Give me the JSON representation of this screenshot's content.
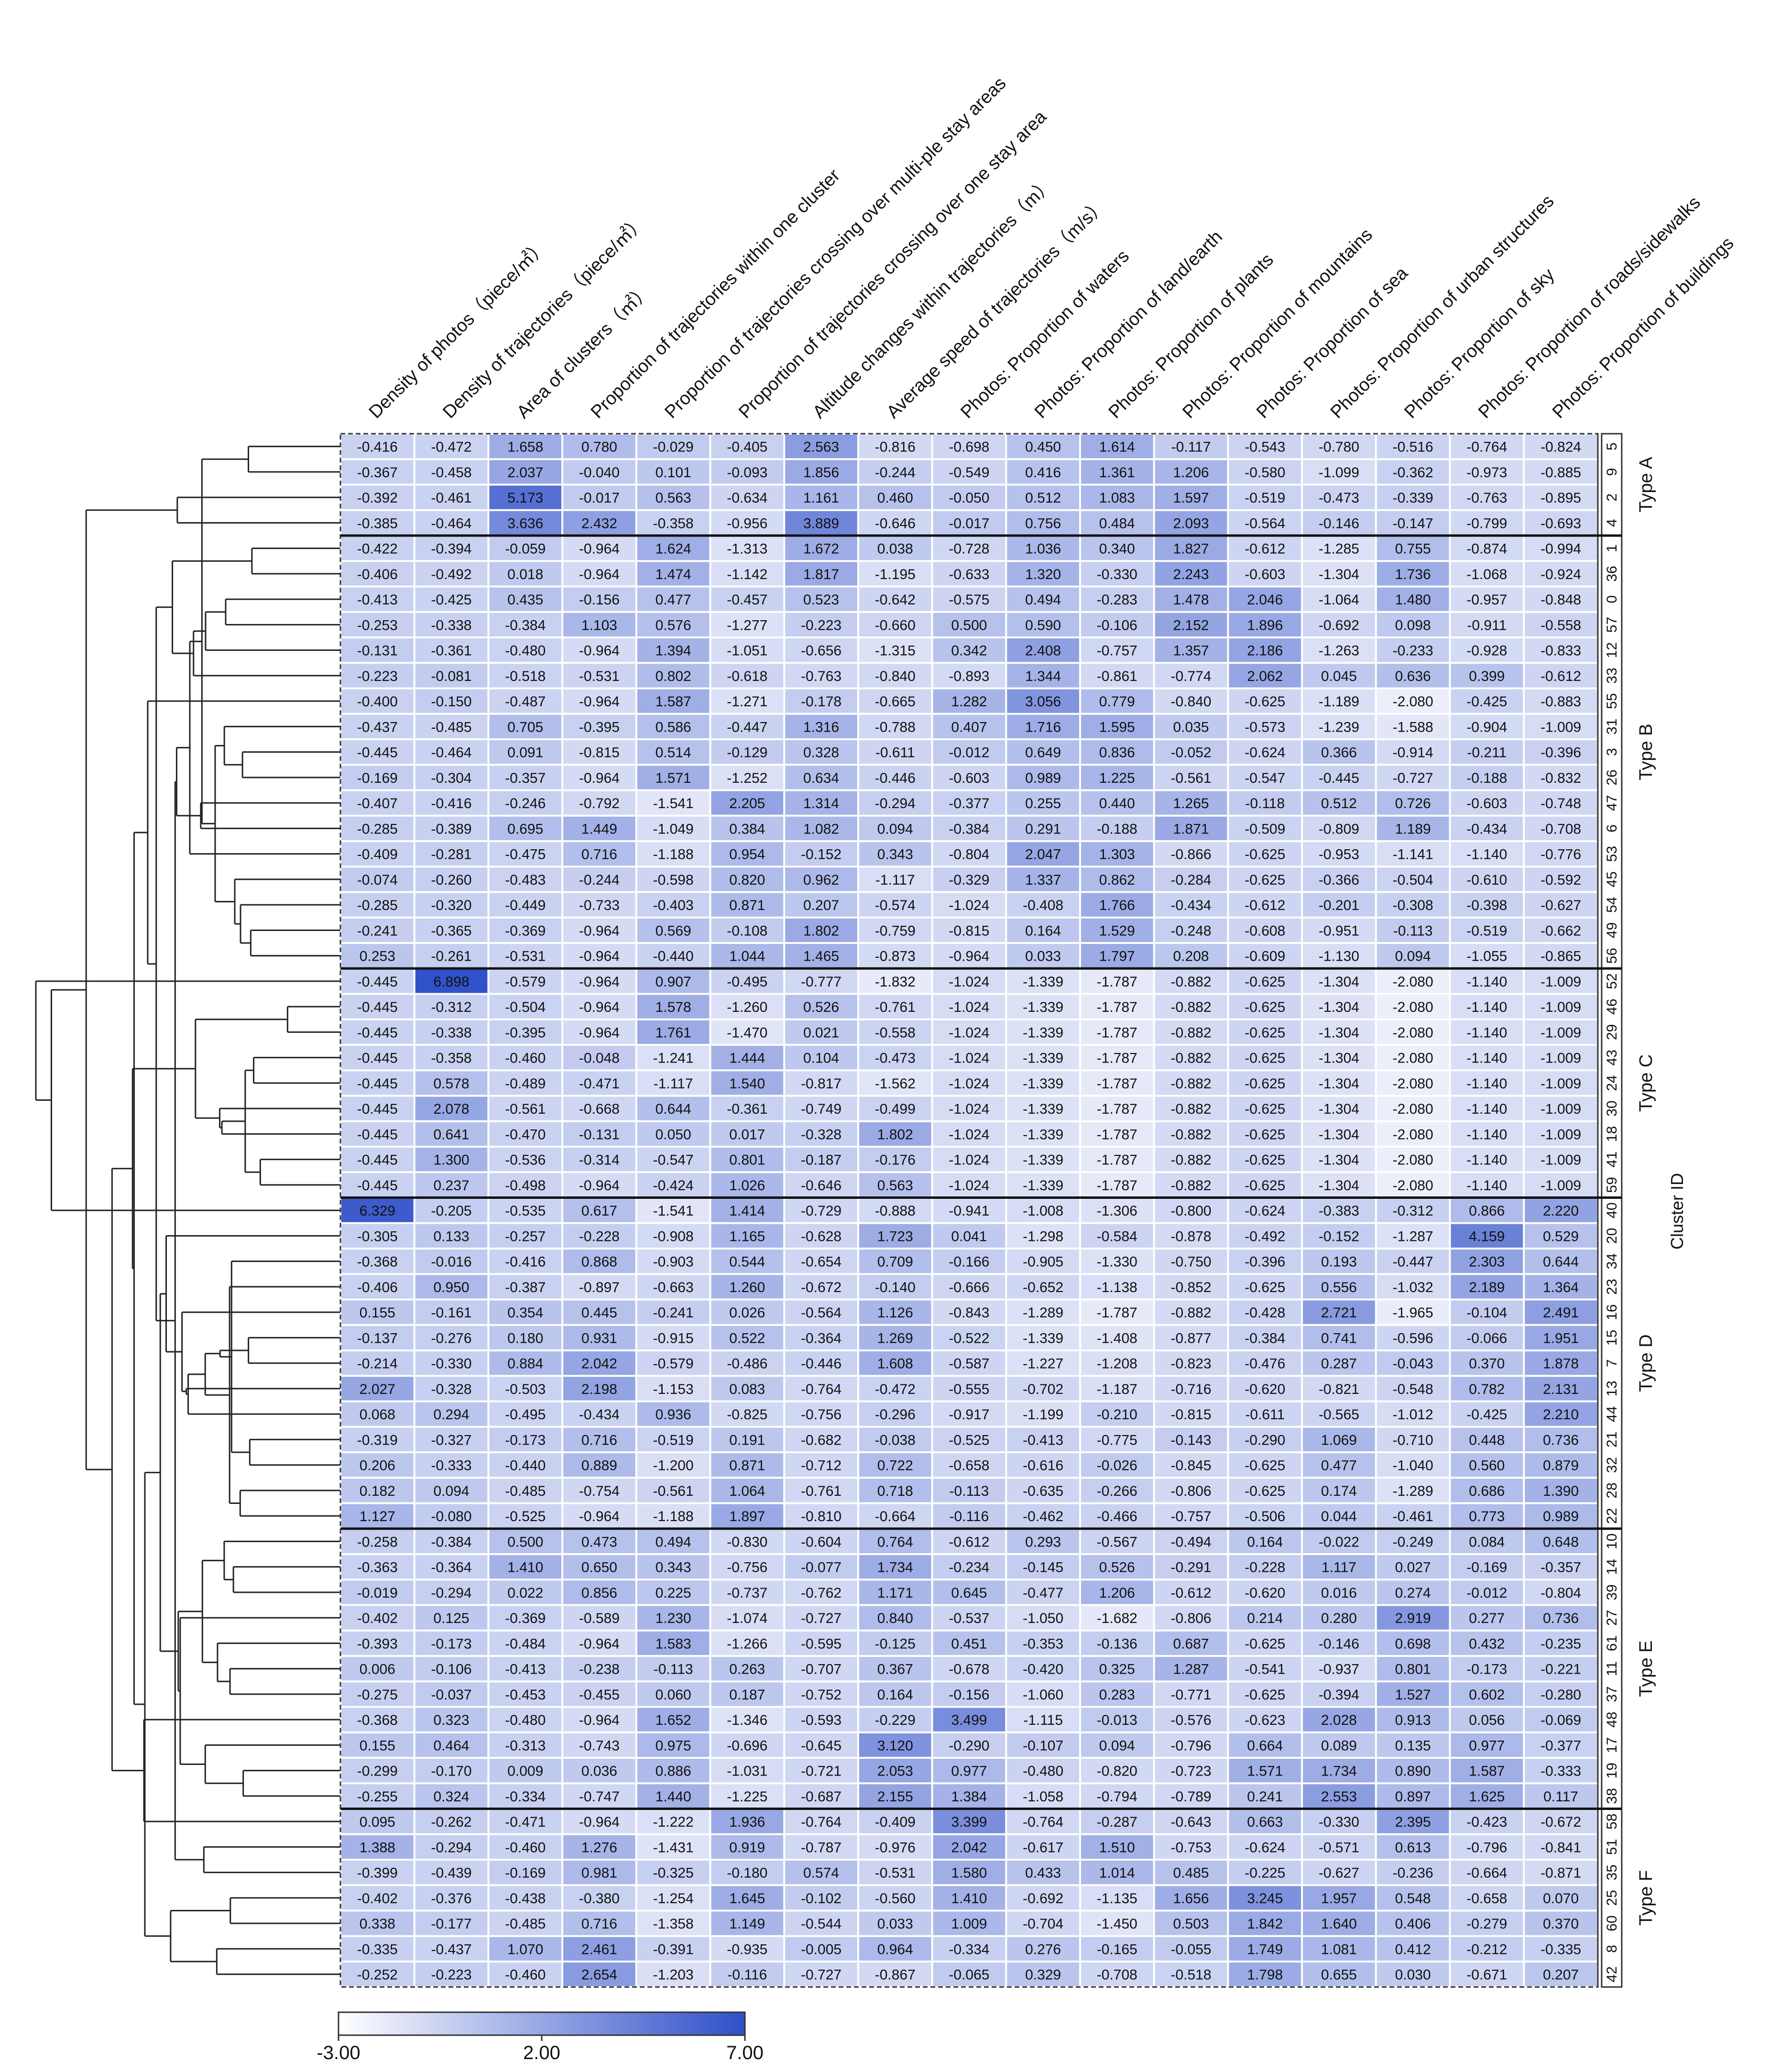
{
  "chart_data": {
    "type": "heatmap",
    "xlabel": "",
    "ylabel": "Cluster ID",
    "columns": [
      "Density of photos（piece/㎡）",
      "Density of trajectories（piece/㎡）",
      "Area of clusters（㎡）",
      "Proportion of trajectories within one cluster",
      "Proportion of trajectories crossing over multi-ple stay areas",
      "Proportion of trajectories crossing over one stay area",
      "Altitude changes within trajectories（m）",
      "Average speed of trajectories（m/s）",
      "Photos: Proportion of waters",
      "Photos: Proportion of land/earth",
      "Photos: Proportion of plants",
      "Photos: Proportion of mountains",
      "Photos: Proportion of sea",
      "Photos: Proportion of urban structures",
      "Photos: Proportion of sky",
      "Photos: Proportion of roads/sidewalks",
      "Photos: Proportion of buildings"
    ],
    "cluster_ids": [
      "5",
      "9",
      "2",
      "4",
      "1",
      "36",
      "0",
      "57",
      "12",
      "33",
      "55",
      "31",
      "3",
      "26",
      "47",
      "6",
      "53",
      "45",
      "54",
      "49",
      "56",
      "52",
      "46",
      "29",
      "43",
      "24",
      "30",
      "18",
      "41",
      "59",
      "40",
      "20",
      "34",
      "23",
      "16",
      "15",
      "7",
      "13",
      "44",
      "21",
      "32",
      "28",
      "22",
      "10",
      "14",
      "39",
      "27",
      "61",
      "11",
      "37",
      "48",
      "17",
      "19",
      "38",
      "58",
      "51",
      "35",
      "25",
      "60",
      "8",
      "42"
    ],
    "values": [
      [
        -0.416,
        -0.472,
        1.658,
        0.78,
        -0.029,
        -0.405,
        2.563,
        -0.816,
        -0.698,
        0.45,
        1.614,
        -0.117,
        -0.543,
        -0.78,
        -0.516,
        -0.764,
        -0.824
      ],
      [
        -0.367,
        -0.458,
        2.037,
        -0.04,
        0.101,
        -0.093,
        1.856,
        -0.244,
        -0.549,
        0.416,
        1.361,
        1.206,
        -0.58,
        -1.099,
        -0.362,
        -0.973,
        -0.885
      ],
      [
        -0.392,
        -0.461,
        5.173,
        -0.017,
        0.563,
        -0.634,
        1.161,
        0.46,
        -0.05,
        0.512,
        1.083,
        1.597,
        -0.519,
        -0.473,
        -0.339,
        -0.763,
        -0.895
      ],
      [
        -0.385,
        -0.464,
        3.636,
        2.432,
        -0.358,
        -0.956,
        3.889,
        -0.646,
        -0.017,
        0.756,
        0.484,
        2.093,
        -0.564,
        -0.146,
        -0.147,
        -0.799,
        -0.693
      ],
      [
        -0.422,
        -0.394,
        -0.059,
        -0.964,
        1.624,
        -1.313,
        1.672,
        0.038,
        -0.728,
        1.036,
        0.34,
        1.827,
        -0.612,
        -1.285,
        0.755,
        -0.874,
        -0.994
      ],
      [
        -0.406,
        -0.492,
        0.018,
        -0.964,
        1.474,
        -1.142,
        1.817,
        -1.195,
        -0.633,
        1.32,
        -0.33,
        2.243,
        -0.603,
        -1.304,
        1.736,
        -1.068,
        -0.924
      ],
      [
        -0.413,
        -0.425,
        0.435,
        -0.156,
        0.477,
        -0.457,
        0.523,
        -0.642,
        -0.575,
        0.494,
        -0.283,
        1.478,
        2.046,
        -1.064,
        1.48,
        -0.957,
        -0.848
      ],
      [
        -0.253,
        -0.338,
        -0.384,
        1.103,
        0.576,
        -1.277,
        -0.223,
        -0.66,
        0.5,
        0.59,
        -0.106,
        2.152,
        1.896,
        -0.692,
        0.098,
        -0.911,
        -0.558
      ],
      [
        -0.131,
        -0.361,
        -0.48,
        -0.964,
        1.394,
        -1.051,
        -0.656,
        -1.315,
        0.342,
        2.408,
        -0.757,
        1.357,
        2.186,
        -1.263,
        -0.233,
        -0.928,
        -0.833
      ],
      [
        -0.223,
        -0.081,
        -0.518,
        -0.531,
        0.802,
        -0.618,
        -0.763,
        -0.84,
        -0.893,
        1.344,
        -0.861,
        -0.774,
        2.062,
        0.045,
        0.636,
        0.399,
        -0.612
      ],
      [
        -0.4,
        -0.15,
        -0.487,
        -0.964,
        1.587,
        -1.271,
        -0.178,
        -0.665,
        1.282,
        3.056,
        0.779,
        -0.84,
        -0.625,
        -1.189,
        -2.08,
        -0.425,
        -0.883
      ],
      [
        -0.437,
        -0.485,
        0.705,
        -0.395,
        0.586,
        -0.447,
        1.316,
        -0.788,
        0.407,
        1.716,
        1.595,
        0.035,
        -0.573,
        -1.239,
        -1.588,
        -0.904,
        -1.009
      ],
      [
        -0.445,
        -0.464,
        0.091,
        -0.815,
        0.514,
        -0.129,
        0.328,
        -0.611,
        -0.012,
        0.649,
        0.836,
        -0.052,
        -0.624,
        0.366,
        -0.914,
        -0.211,
        -0.396
      ],
      [
        -0.169,
        -0.304,
        -0.357,
        -0.964,
        1.571,
        -1.252,
        0.634,
        -0.446,
        -0.603,
        0.989,
        1.225,
        -0.561,
        -0.547,
        -0.445,
        -0.727,
        -0.188,
        -0.832
      ],
      [
        -0.407,
        -0.416,
        -0.246,
        -0.792,
        -1.541,
        2.205,
        1.314,
        -0.294,
        -0.377,
        0.255,
        0.44,
        1.265,
        -0.118,
        0.512,
        0.726,
        -0.603,
        -0.748
      ],
      [
        -0.285,
        -0.389,
        0.695,
        1.449,
        -1.049,
        0.384,
        1.082,
        0.094,
        -0.384,
        0.291,
        -0.188,
        1.871,
        -0.509,
        -0.809,
        1.189,
        -0.434,
        -0.708
      ],
      [
        -0.409,
        -0.281,
        -0.475,
        0.716,
        -1.188,
        0.954,
        -0.152,
        0.343,
        -0.804,
        2.047,
        1.303,
        -0.866,
        -0.625,
        -0.953,
        -1.141,
        -1.14,
        -0.776
      ],
      [
        -0.074,
        -0.26,
        -0.483,
        -0.244,
        -0.598,
        0.82,
        0.962,
        -1.117,
        -0.329,
        1.337,
        0.862,
        -0.284,
        -0.625,
        -0.366,
        -0.504,
        -0.61,
        -0.592
      ],
      [
        -0.285,
        -0.32,
        -0.449,
        -0.733,
        -0.403,
        0.871,
        0.207,
        -0.574,
        -1.024,
        -0.408,
        1.766,
        -0.434,
        -0.612,
        -0.201,
        -0.308,
        -0.398,
        -0.627
      ],
      [
        -0.241,
        -0.365,
        -0.369,
        -0.964,
        0.569,
        -0.108,
        1.802,
        -0.759,
        -0.815,
        0.164,
        1.529,
        -0.248,
        -0.608,
        -0.951,
        -0.113,
        -0.519,
        -0.662
      ],
      [
        0.253,
        -0.261,
        -0.531,
        -0.964,
        -0.44,
        1.044,
        1.465,
        -0.873,
        -0.964,
        0.033,
        1.797,
        0.208,
        -0.609,
        -1.13,
        0.094,
        -1.055,
        -0.865
      ],
      [
        -0.445,
        6.898,
        -0.579,
        -0.964,
        0.907,
        -0.495,
        -0.777,
        -1.832,
        -1.024,
        -1.339,
        -1.787,
        -0.882,
        -0.625,
        -1.304,
        -2.08,
        -1.14,
        -1.009
      ],
      [
        -0.445,
        -0.312,
        -0.504,
        -0.964,
        1.578,
        -1.26,
        0.526,
        -0.761,
        -1.024,
        -1.339,
        -1.787,
        -0.882,
        -0.625,
        -1.304,
        -2.08,
        -1.14,
        -1.009
      ],
      [
        -0.445,
        -0.338,
        -0.395,
        -0.964,
        1.761,
        -1.47,
        0.021,
        -0.558,
        -1.024,
        -1.339,
        -1.787,
        -0.882,
        -0.625,
        -1.304,
        -2.08,
        -1.14,
        -1.009
      ],
      [
        -0.445,
        -0.358,
        -0.46,
        -0.048,
        -1.241,
        1.444,
        0.104,
        -0.473,
        -1.024,
        -1.339,
        -1.787,
        -0.882,
        -0.625,
        -1.304,
        -2.08,
        -1.14,
        -1.009
      ],
      [
        -0.445,
        0.578,
        -0.489,
        -0.471,
        -1.117,
        1.54,
        -0.817,
        -1.562,
        -1.024,
        -1.339,
        -1.787,
        -0.882,
        -0.625,
        -1.304,
        -2.08,
        -1.14,
        -1.009
      ],
      [
        -0.445,
        2.078,
        -0.561,
        -0.668,
        0.644,
        -0.361,
        -0.749,
        -0.499,
        -1.024,
        -1.339,
        -1.787,
        -0.882,
        -0.625,
        -1.304,
        -2.08,
        -1.14,
        -1.009
      ],
      [
        -0.445,
        0.641,
        -0.47,
        -0.131,
        0.05,
        0.017,
        -0.328,
        1.802,
        -1.024,
        -1.339,
        -1.787,
        -0.882,
        -0.625,
        -1.304,
        -2.08,
        -1.14,
        -1.009
      ],
      [
        -0.445,
        1.3,
        -0.536,
        -0.314,
        -0.547,
        0.801,
        -0.187,
        -0.176,
        -1.024,
        -1.339,
        -1.787,
        -0.882,
        -0.625,
        -1.304,
        -2.08,
        -1.14,
        -1.009
      ],
      [
        -0.445,
        0.237,
        -0.498,
        -0.964,
        -0.424,
        1.026,
        -0.646,
        0.563,
        -1.024,
        -1.339,
        -1.787,
        -0.882,
        -0.625,
        -1.304,
        -2.08,
        -1.14,
        -1.009
      ],
      [
        6.329,
        -0.205,
        -0.535,
        0.617,
        -1.541,
        1.414,
        -0.729,
        -0.888,
        -0.941,
        -1.008,
        -1.306,
        -0.8,
        -0.624,
        -0.383,
        -0.312,
        0.866,
        2.22
      ],
      [
        -0.305,
        0.133,
        -0.257,
        -0.228,
        -0.908,
        1.165,
        -0.628,
        1.723,
        0.041,
        -1.298,
        -0.584,
        -0.878,
        -0.492,
        -0.152,
        -1.287,
        4.159,
        0.529
      ],
      [
        -0.368,
        -0.016,
        -0.416,
        0.868,
        -0.903,
        0.544,
        -0.654,
        0.709,
        -0.166,
        -0.905,
        -1.33,
        -0.75,
        -0.396,
        0.193,
        -0.447,
        2.303,
        0.644
      ],
      [
        -0.406,
        0.95,
        -0.387,
        -0.897,
        -0.663,
        1.26,
        -0.672,
        -0.14,
        -0.666,
        -0.652,
        -1.138,
        -0.852,
        -0.625,
        0.556,
        -1.032,
        2.189,
        1.364
      ],
      [
        0.155,
        -0.161,
        0.354,
        0.445,
        -0.241,
        0.026,
        -0.564,
        1.126,
        -0.843,
        -1.289,
        -1.787,
        -0.882,
        -0.428,
        2.721,
        -1.965,
        -0.104,
        2.491
      ],
      [
        -0.137,
        -0.276,
        0.18,
        0.931,
        -0.915,
        0.522,
        -0.364,
        1.269,
        -0.522,
        -1.339,
        -1.408,
        -0.877,
        -0.384,
        0.741,
        -0.596,
        -0.066,
        1.951
      ],
      [
        -0.214,
        -0.33,
        0.884,
        2.042,
        -0.579,
        -0.486,
        -0.446,
        1.608,
        -0.587,
        -1.227,
        -1.208,
        -0.823,
        -0.476,
        0.287,
        -0.043,
        0.37,
        1.878
      ],
      [
        2.027,
        -0.328,
        -0.503,
        2.198,
        -1.153,
        0.083,
        -0.764,
        -0.472,
        -0.555,
        -0.702,
        -1.187,
        -0.716,
        -0.62,
        -0.821,
        -0.548,
        0.782,
        2.131
      ],
      [
        0.068,
        0.294,
        -0.495,
        -0.434,
        0.936,
        -0.825,
        -0.756,
        -0.296,
        -0.917,
        -1.199,
        -0.21,
        -0.815,
        -0.611,
        -0.565,
        -1.012,
        -0.425,
        2.21
      ],
      [
        -0.319,
        -0.327,
        -0.173,
        0.716,
        -0.519,
        0.191,
        -0.682,
        -0.038,
        -0.525,
        -0.413,
        -0.775,
        -0.143,
        -0.29,
        1.069,
        -0.71,
        0.448,
        0.736
      ],
      [
        0.206,
        -0.333,
        -0.44,
        0.889,
        -1.2,
        0.871,
        -0.712,
        0.722,
        -0.658,
        -0.616,
        -0.026,
        -0.845,
        -0.625,
        0.477,
        -1.04,
        0.56,
        0.879
      ],
      [
        0.182,
        0.094,
        -0.485,
        -0.754,
        -0.561,
        1.064,
        -0.761,
        0.718,
        -0.113,
        -0.635,
        -0.266,
        -0.806,
        -0.625,
        0.174,
        -1.289,
        0.686,
        1.39
      ],
      [
        1.127,
        -0.08,
        -0.525,
        -0.964,
        -1.188,
        1.897,
        -0.81,
        -0.664,
        -0.116,
        -0.462,
        -0.466,
        -0.757,
        -0.506,
        0.044,
        -0.461,
        0.773,
        0.989
      ],
      [
        -0.258,
        -0.384,
        0.5,
        0.473,
        0.494,
        -0.83,
        -0.604,
        0.764,
        -0.612,
        0.293,
        -0.567,
        -0.494,
        0.164,
        -0.022,
        -0.249,
        0.084,
        0.648
      ],
      [
        -0.363,
        -0.364,
        1.41,
        0.65,
        0.343,
        -0.756,
        -0.077,
        1.734,
        -0.234,
        -0.145,
        0.526,
        -0.291,
        -0.228,
        1.117,
        0.027,
        -0.169,
        -0.357
      ],
      [
        -0.019,
        -0.294,
        0.022,
        0.856,
        0.225,
        -0.737,
        -0.762,
        1.171,
        0.645,
        -0.477,
        1.206,
        -0.612,
        -0.62,
        0.016,
        0.274,
        -0.012,
        -0.804
      ],
      [
        -0.402,
        0.125,
        -0.369,
        -0.589,
        1.23,
        -1.074,
        -0.727,
        0.84,
        -0.537,
        -1.05,
        -1.682,
        -0.806,
        0.214,
        0.28,
        2.919,
        0.277,
        0.736
      ],
      [
        -0.393,
        -0.173,
        -0.484,
        -0.964,
        1.583,
        -1.266,
        -0.595,
        -0.125,
        0.451,
        -0.353,
        -0.136,
        0.687,
        -0.625,
        -0.146,
        0.698,
        0.432,
        -0.235
      ],
      [
        0.006,
        -0.106,
        -0.413,
        -0.238,
        -0.113,
        0.263,
        -0.707,
        0.367,
        -0.678,
        -0.42,
        0.325,
        1.287,
        -0.541,
        -0.937,
        0.801,
        -0.173,
        -0.221
      ],
      [
        -0.275,
        -0.037,
        -0.453,
        -0.455,
        0.06,
        0.187,
        -0.752,
        0.164,
        -0.156,
        -1.06,
        0.283,
        -0.771,
        -0.625,
        -0.394,
        1.527,
        0.602,
        -0.28
      ],
      [
        -0.368,
        0.323,
        -0.48,
        -0.964,
        1.652,
        -1.346,
        -0.593,
        -0.229,
        3.499,
        -1.115,
        -0.013,
        -0.576,
        -0.623,
        2.028,
        0.913,
        0.056,
        -0.069
      ],
      [
        0.155,
        0.464,
        -0.313,
        -0.743,
        0.975,
        -0.696,
        -0.645,
        3.12,
        -0.29,
        -0.107,
        0.094,
        -0.796,
        0.664,
        0.089,
        0.135,
        0.977,
        -0.377
      ],
      [
        -0.299,
        -0.17,
        0.009,
        0.036,
        0.886,
        -1.031,
        -0.721,
        2.053,
        0.977,
        -0.48,
        -0.82,
        -0.723,
        1.571,
        1.734,
        0.89,
        1.587,
        -0.333
      ],
      [
        -0.255,
        0.324,
        -0.334,
        -0.747,
        1.44,
        -1.225,
        -0.687,
        2.155,
        1.384,
        -1.058,
        -0.794,
        -0.789,
        0.241,
        2.553,
        0.897,
        1.625,
        0.117
      ],
      [
        0.095,
        -0.262,
        -0.471,
        -0.964,
        -1.222,
        1.936,
        -0.764,
        -0.409,
        3.399,
        -0.764,
        -0.287,
        -0.643,
        0.663,
        -0.33,
        2.395,
        -0.423,
        -0.672
      ],
      [
        1.388,
        -0.294,
        -0.46,
        1.276,
        -1.431,
        0.919,
        -0.787,
        -0.976,
        2.042,
        -0.617,
        1.51,
        -0.753,
        -0.624,
        -0.571,
        0.613,
        -0.796,
        -0.841
      ],
      [
        -0.399,
        -0.439,
        -0.169,
        0.981,
        -0.325,
        -0.18,
        0.574,
        -0.531,
        1.58,
        0.433,
        1.014,
        0.485,
        -0.225,
        -0.627,
        -0.236,
        -0.664,
        -0.871
      ],
      [
        -0.402,
        -0.376,
        -0.438,
        -0.38,
        -1.254,
        1.645,
        -0.102,
        -0.56,
        1.41,
        -0.692,
        -1.135,
        1.656,
        3.245,
        1.957,
        0.548,
        -0.658,
        0.07
      ],
      [
        0.338,
        -0.177,
        -0.485,
        0.716,
        -1.358,
        1.149,
        -0.544,
        0.033,
        1.009,
        -0.704,
        -1.45,
        0.503,
        1.842,
        1.64,
        0.406,
        -0.279,
        0.37
      ],
      [
        -0.335,
        -0.437,
        1.07,
        2.461,
        -0.391,
        -0.935,
        -0.005,
        0.964,
        -0.334,
        0.276,
        -0.165,
        -0.055,
        1.749,
        1.081,
        0.412,
        -0.212,
        -0.335
      ],
      [
        -0.252,
        -0.223,
        -0.46,
        2.654,
        -1.203,
        -0.116,
        -0.727,
        -0.867,
        -0.065,
        0.329,
        -0.708,
        -0.518,
        1.798,
        0.655,
        0.03,
        -0.671,
        0.207
      ]
    ],
    "groups": [
      {
        "name": "Type A",
        "start": 0,
        "count": 4
      },
      {
        "name": "Type B",
        "start": 4,
        "count": 17
      },
      {
        "name": "Type C",
        "start": 21,
        "count": 9
      },
      {
        "name": "Type D",
        "start": 30,
        "count": 13
      },
      {
        "name": "Type E",
        "start": 43,
        "count": 11
      },
      {
        "name": "Type F",
        "start": 54,
        "count": 7
      }
    ],
    "colorscale": {
      "min": -3.0,
      "max": 7.0,
      "min_color": "#ffffff",
      "max_color": "#2f4fc9",
      "tick_labels": [
        "-3.00",
        "2.00",
        "7.00"
      ]
    }
  }
}
